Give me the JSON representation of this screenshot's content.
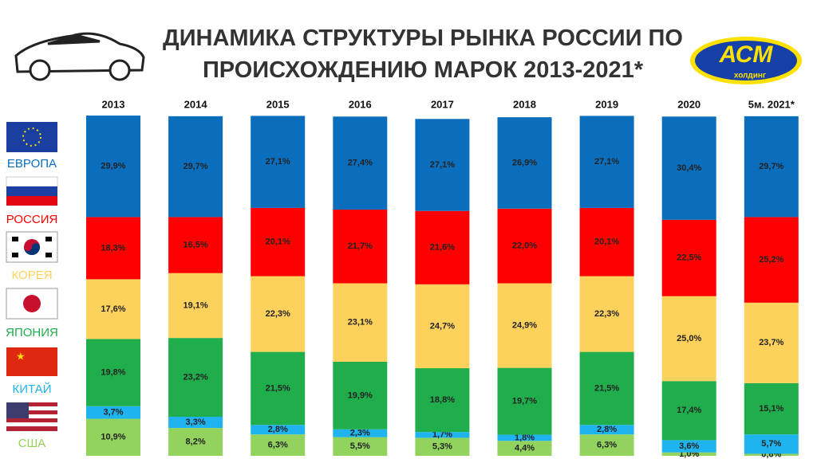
{
  "chart_data": {
    "type": "stacked-bar",
    "title": "ДИНАМИКА СТРУКТУРЫ РЫНКА РОССИИ ПО ПРОИСХОЖДЕНИЮ МАРОК 2013-2021*",
    "logo": {
      "text": "АСМ",
      "subtitle": "холдинг"
    },
    "categories": [
      "2013",
      "2014",
      "2015",
      "2016",
      "2017",
      "2018",
      "2019",
      "2020",
      "5м. 2021*"
    ],
    "series": [
      {
        "name": "ЕВРОПА",
        "color": "#0a6ebd",
        "values": [
          29.9,
          29.7,
          27.1,
          27.4,
          27.1,
          26.9,
          27.1,
          30.4,
          29.7
        ],
        "value_labels": [
          "29,9%",
          "29,7%",
          "27,1%",
          "27,4%",
          "27,1%",
          "26,9%",
          "27,1%",
          "30,4%",
          "29,7%"
        ]
      },
      {
        "name": "РОССИЯ",
        "color": "#fe0000",
        "values": [
          18.3,
          16.5,
          20.1,
          21.7,
          21.6,
          22.0,
          20.1,
          22.5,
          25.2
        ],
        "value_labels": [
          "18,3%",
          "16,5%",
          "20,1%",
          "21,7%",
          "21,6%",
          "22,0%",
          "20,1%",
          "22,5%",
          "25,2%"
        ]
      },
      {
        "name": "КОРЕЯ",
        "color": "#fdd25c",
        "values": [
          17.6,
          19.1,
          22.3,
          23.1,
          24.7,
          24.9,
          22.3,
          25.0,
          23.7
        ],
        "value_labels": [
          "17,6%",
          "19,1%",
          "22,3%",
          "23,1%",
          "24,7%",
          "24,9%",
          "22,3%",
          "25,0%",
          "23,7%"
        ]
      },
      {
        "name": "ЯПОНИЯ",
        "color": "#1fae4b",
        "values": [
          19.8,
          23.2,
          21.5,
          19.9,
          18.8,
          19.7,
          21.5,
          17.4,
          15.1
        ],
        "value_labels": [
          "19,8%",
          "23,2%",
          "21,5%",
          "19,9%",
          "18,8%",
          "19,7%",
          "21,5%",
          "17,4%",
          "15,1%"
        ]
      },
      {
        "name": "КИТАЙ",
        "color": "#1fb4ef",
        "values": [
          3.7,
          3.3,
          2.8,
          2.3,
          1.7,
          1.8,
          2.8,
          3.6,
          5.7
        ],
        "value_labels": [
          "3,7%",
          "3,3%",
          "2,8%",
          "2,3%",
          "1,7%",
          "1,8%",
          "2,8%",
          "3,6%",
          "5,7%"
        ]
      },
      {
        "name": "США",
        "color": "#92d35e",
        "values": [
          10.9,
          8.2,
          6.3,
          5.5,
          5.3,
          4.4,
          6.3,
          1.0,
          0.6
        ],
        "value_labels": [
          "10,9%",
          "8,2%",
          "6,3%",
          "5,5%",
          "5,3%",
          "4,4%",
          "6,3%",
          "1,0%",
          "0,6%"
        ]
      }
    ]
  }
}
